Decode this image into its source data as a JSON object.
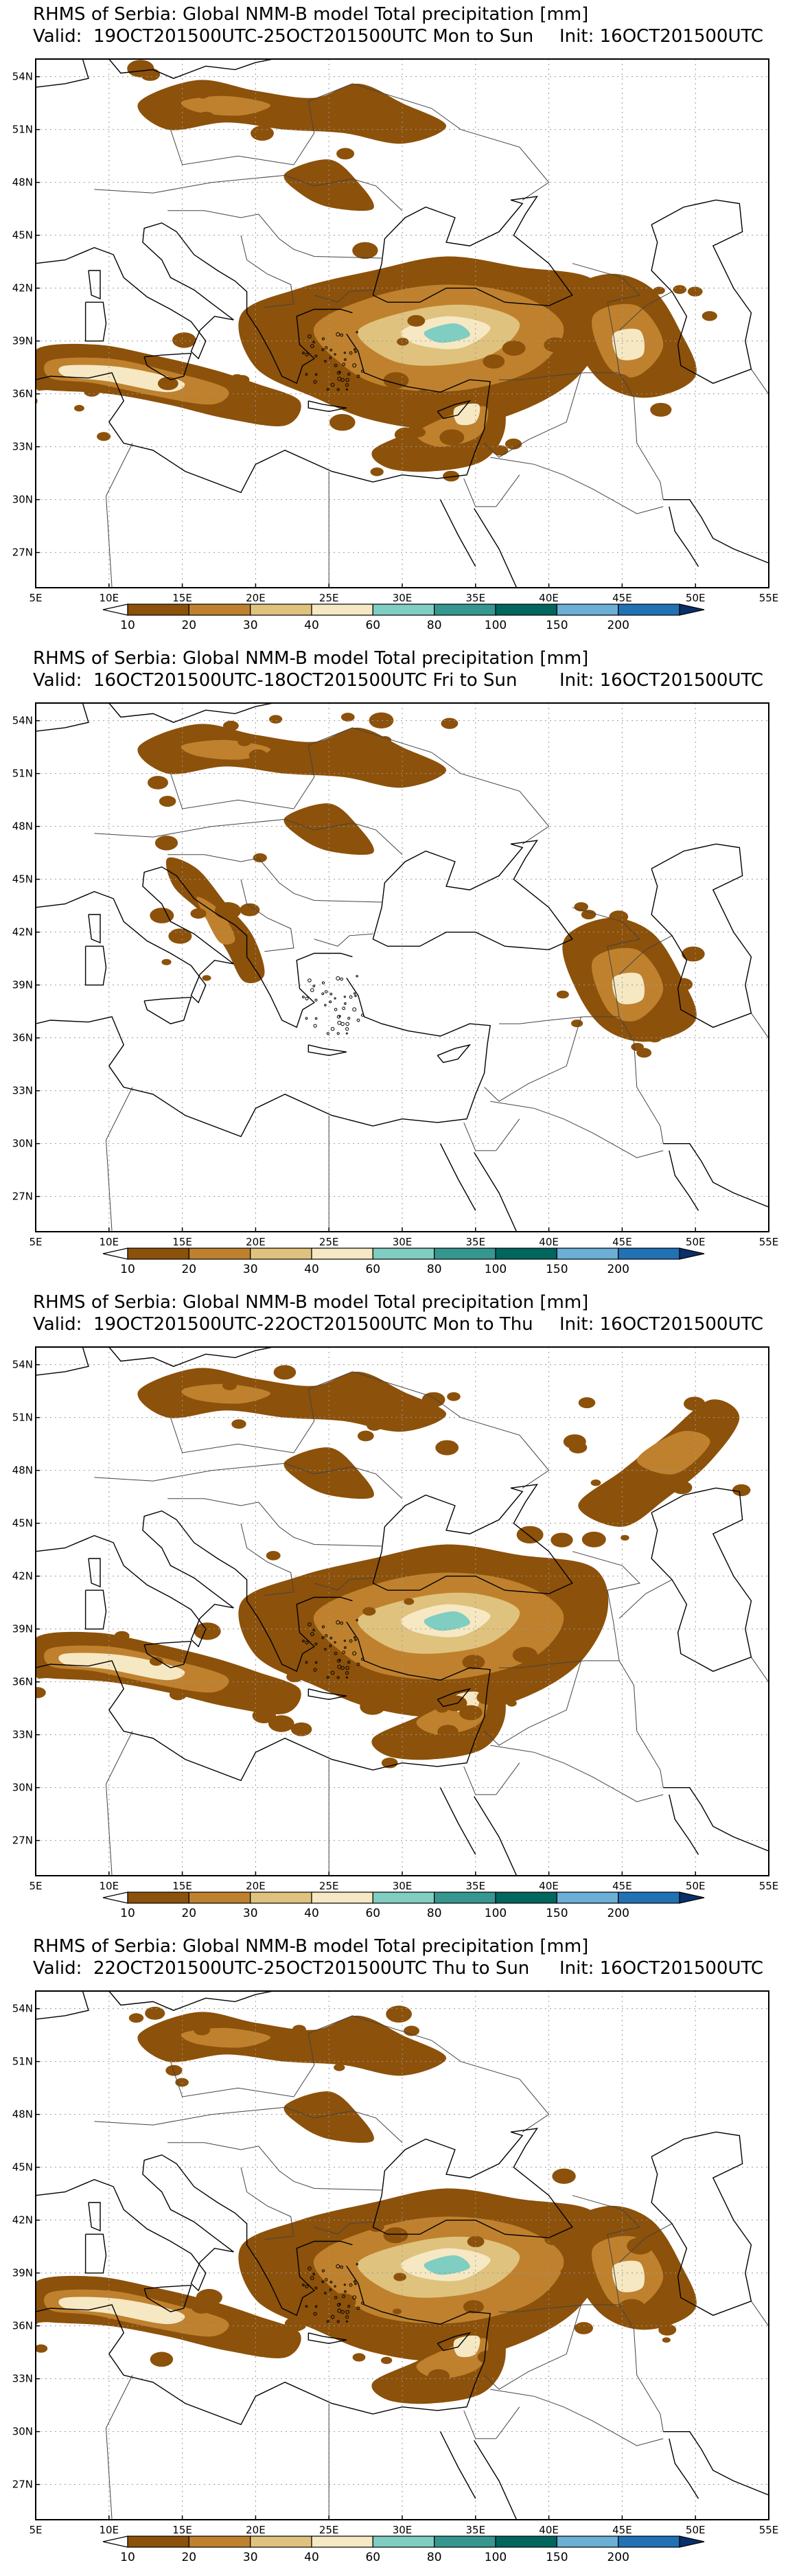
{
  "common": {
    "title": "RHMS of Serbia: Global NMM-B model Total precipitation [mm]",
    "valid_prefix": "Valid:",
    "init_prefix": "Init:",
    "lon_labels": [
      "5E",
      "10E",
      "15E",
      "20E",
      "25E",
      "30E",
      "35E",
      "40E",
      "45E",
      "50E",
      "55E"
    ],
    "lat_labels": [
      "54N",
      "51N",
      "48N",
      "45N",
      "42N",
      "39N",
      "36N",
      "33N",
      "30N",
      "27N"
    ],
    "colorbar": {
      "levels": [
        "10",
        "20",
        "30",
        "40",
        "60",
        "80",
        "100",
        "150",
        "200"
      ],
      "colors": [
        "#ffffff",
        "#8c510a",
        "#bf812d",
        "#dfc27d",
        "#f6e8c3",
        "#80cdc1",
        "#35978f",
        "#01665e",
        "#6baed6",
        "#2171b5",
        "#08306b"
      ]
    }
  },
  "panels": [
    {
      "valid": "19OCT201500UTC-25OCT201500UTC Mon to Sun",
      "init": "16OCT201500UTC",
      "precip_regions": [
        "north-europe band",
        "anatolia",
        "levant",
        "central mediterranean",
        "caucasus"
      ]
    },
    {
      "valid": "16OCT201500UTC-18OCT201500UTC Fri to Sun",
      "init": "16OCT201500UTC",
      "precip_regions": [
        "north-europe band",
        "balkans",
        "caucasus"
      ]
    },
    {
      "valid": "19OCT201500UTC-22OCT201500UTC Mon to Thu",
      "init": "16OCT201500UTC",
      "precip_regions": [
        "north-europe band",
        "anatolia",
        "levant",
        "central mediterranean",
        "northeast plain"
      ]
    },
    {
      "valid": "22OCT201500UTC-25OCT201500UTC Thu to Sun",
      "init": "16OCT201500UTC",
      "precip_regions": [
        "north-europe band",
        "anatolia",
        "caucasus",
        "levant",
        "central mediterranean"
      ]
    }
  ]
}
